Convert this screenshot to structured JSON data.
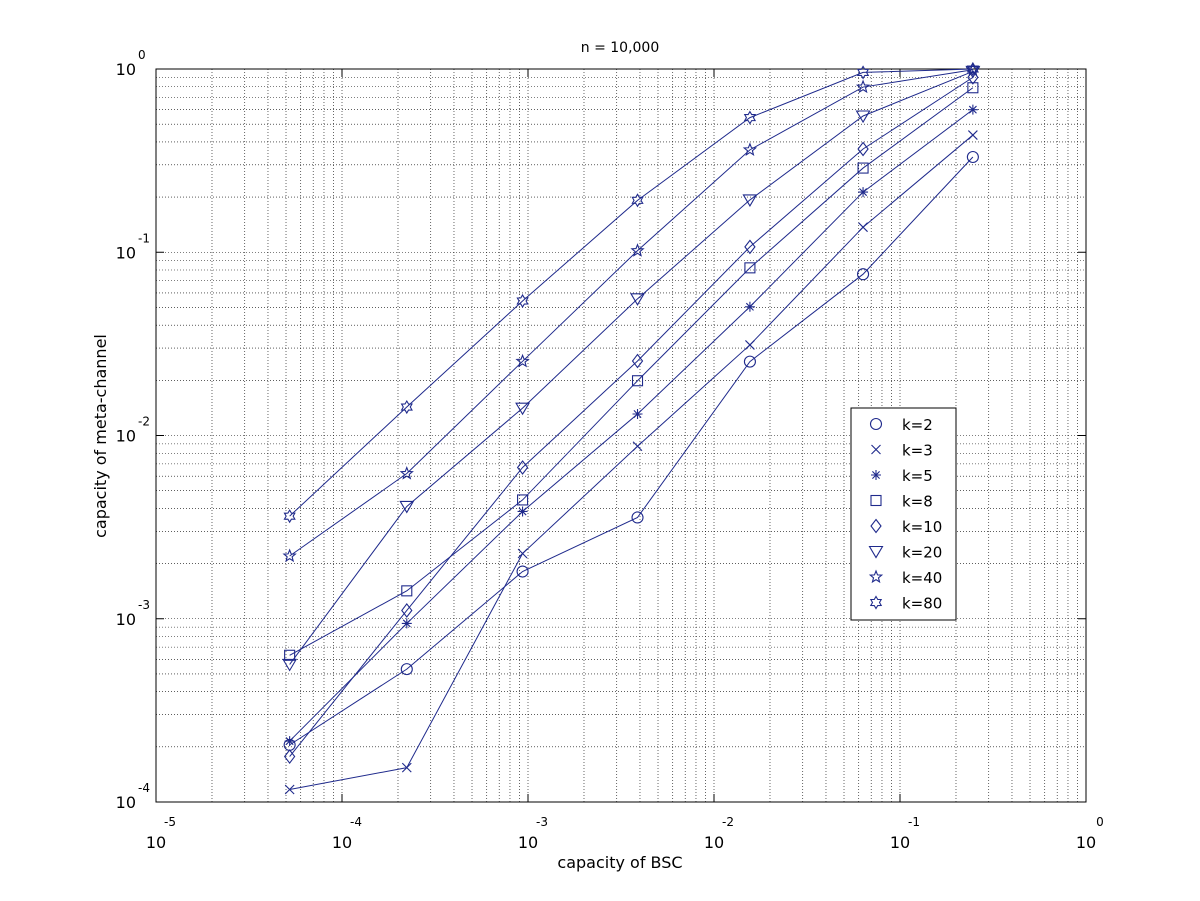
{
  "chart_data": {
    "type": "line",
    "title": "n = 10,000",
    "xlabel": "capacity of BSC",
    "ylabel": "capacity of meta-channel",
    "x_scale": "log",
    "y_scale": "log",
    "xlim": [
      1e-05,
      1
    ],
    "ylim": [
      0.0001,
      1
    ],
    "grid": true,
    "legend_position": "right",
    "x_ticks": [
      {
        "base": "10",
        "exp": "-5"
      },
      {
        "base": "10",
        "exp": "-4"
      },
      {
        "base": "10",
        "exp": "-3"
      },
      {
        "base": "10",
        "exp": "-2"
      },
      {
        "base": "10",
        "exp": "-1"
      },
      {
        "base": "10",
        "exp": "0"
      }
    ],
    "y_ticks": [
      {
        "base": "10",
        "exp": "-4"
      },
      {
        "base": "10",
        "exp": "-3"
      },
      {
        "base": "10",
        "exp": "-2"
      },
      {
        "base": "10",
        "exp": "-1"
      },
      {
        "base": "10",
        "exp": "0"
      }
    ],
    "line_color": "#1f2a8c",
    "x": [
      5.23e-05,
      0.000223,
      0.000935,
      0.00388,
      0.0156,
      0.0633,
      0.2465
    ],
    "series": [
      {
        "name": "k=2",
        "marker": "circle",
        "values": [
          0.000205,
          0.000531,
          0.00181,
          0.00357,
          0.0253,
          0.0759,
          0.331
        ]
      },
      {
        "name": "k=3",
        "marker": "x",
        "values": [
          0.000117,
          0.000154,
          0.00227,
          0.00874,
          0.0312,
          0.137,
          0.436
        ]
      },
      {
        "name": "k=5",
        "marker": "asterisk",
        "values": [
          0.000215,
          0.000943,
          0.00385,
          0.0131,
          0.0504,
          0.213,
          0.6
        ]
      },
      {
        "name": "k=8",
        "marker": "square",
        "values": [
          0.000632,
          0.00142,
          0.00445,
          0.0199,
          0.0822,
          0.288,
          0.79
        ]
      },
      {
        "name": "k=10",
        "marker": "diamond",
        "values": [
          0.000177,
          0.00111,
          0.00669,
          0.0255,
          0.107,
          0.366,
          0.9
        ]
      },
      {
        "name": "k=20",
        "marker": "triangle-down",
        "values": [
          0.000563,
          0.0041,
          0.0141,
          0.0557,
          0.193,
          0.554,
          0.97
        ]
      },
      {
        "name": "k=40",
        "marker": "pentagram",
        "values": [
          0.0022,
          0.0062,
          0.0254,
          0.102,
          0.362,
          0.797,
          0.99
        ]
      },
      {
        "name": "k=80",
        "marker": "hexagram",
        "values": [
          0.00363,
          0.0143,
          0.0542,
          0.192,
          0.543,
          0.958,
          1.0
        ]
      }
    ]
  }
}
